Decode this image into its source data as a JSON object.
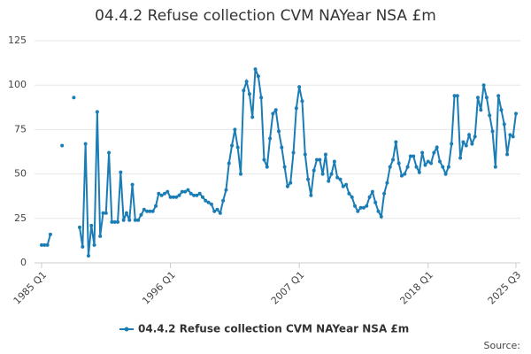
{
  "chart_data": {
    "type": "line",
    "title": "04.4.2 Refuse collection CVM NAYear NSA £m",
    "source_label": "Source:",
    "categories": [
      "1985 Q1",
      null,
      null,
      null,
      null,
      null,
      null,
      null,
      null,
      null,
      null,
      null,
      null,
      null,
      null,
      null,
      null,
      null,
      null,
      null,
      null,
      null,
      null,
      null,
      null,
      null,
      null,
      null,
      null,
      null,
      null,
      null,
      null,
      null,
      null,
      null,
      null,
      null,
      null,
      null,
      null,
      null,
      null,
      null,
      "1996 Q1",
      null,
      null,
      null,
      null,
      null,
      null,
      null,
      null,
      null,
      null,
      null,
      null,
      null,
      null,
      null,
      null,
      null,
      null,
      null,
      null,
      null,
      null,
      null,
      null,
      null,
      null,
      null,
      null,
      null,
      null,
      null,
      null,
      null,
      null,
      null,
      null,
      null,
      null,
      null,
      null,
      null,
      null,
      null,
      "2007 Q1",
      null,
      null,
      null,
      null,
      null,
      null,
      null,
      null,
      null,
      null,
      null,
      null,
      null,
      null,
      null,
      null,
      null,
      null,
      null,
      null,
      null,
      null,
      null,
      null,
      null,
      null,
      null,
      null,
      null,
      null,
      null,
      null,
      null,
      null,
      null,
      null,
      null,
      null,
      null,
      null,
      null,
      null,
      null,
      "2018 Q1",
      null,
      null,
      null,
      null,
      null,
      null,
      null,
      null,
      null,
      null,
      null,
      null,
      null,
      null,
      null,
      null,
      null,
      null,
      null,
      null,
      null,
      null,
      null,
      null,
      null,
      null,
      null,
      null,
      null,
      "2025 Q3"
    ],
    "series": [
      {
        "name": "04.4.2 Refuse collection CVM NAYear NSA £m",
        "color": "#1a7db5",
        "values": [
          10,
          10,
          10,
          16,
          null,
          null,
          null,
          66,
          null,
          null,
          null,
          93,
          null,
          20,
          9,
          67,
          4,
          21,
          10,
          85,
          15,
          28,
          28,
          62,
          23,
          23,
          23,
          51,
          24,
          28,
          24,
          44,
          24,
          24,
          27,
          30,
          29,
          29,
          29,
          32,
          39,
          38,
          39,
          40,
          37,
          37,
          37,
          38,
          40,
          40,
          41,
          39,
          38,
          38,
          39,
          37,
          35,
          34,
          33,
          29,
          30,
          28,
          35,
          41,
          56,
          66,
          75,
          65,
          50,
          97,
          102,
          95,
          82,
          109,
          105,
          93,
          58,
          54,
          70,
          84,
          86,
          74,
          65,
          54,
          43,
          45,
          62,
          87,
          99,
          91,
          61,
          47,
          38,
          52,
          58,
          58,
          50,
          61,
          46,
          50,
          57,
          48,
          47,
          43,
          44,
          39,
          37,
          32,
          29,
          31,
          31,
          32,
          37,
          40,
          34,
          29,
          26,
          39,
          45,
          54,
          58,
          68,
          56,
          49,
          50,
          54,
          60,
          60,
          54,
          51,
          62,
          55,
          57,
          56,
          62,
          65,
          57,
          54,
          50,
          54,
          67,
          94,
          94,
          59,
          68,
          66,
          72,
          67,
          71,
          93,
          86,
          100,
          93,
          83,
          74,
          54,
          94,
          86,
          78,
          61,
          72,
          71,
          84
        ]
      }
    ],
    "ylim": [
      0,
      125
    ],
    "yticks": [
      0,
      25,
      50,
      75,
      100,
      125
    ],
    "grid": true
  }
}
